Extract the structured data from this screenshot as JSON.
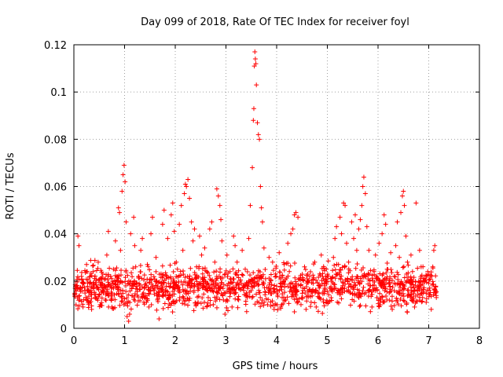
{
  "chart_data": {
    "type": "scatter",
    "title": "Day 099 of 2018, Rate Of TEC Index for receiver foyl",
    "xlabel": "GPS time / hours",
    "ylabel": "ROTI / TECUs",
    "xlim": [
      0,
      8
    ],
    "ylim": [
      0,
      0.12
    ],
    "xticks": [
      0,
      1,
      2,
      3,
      4,
      5,
      6,
      7,
      8
    ],
    "yticks": [
      0,
      0.02,
      0.04,
      0.06,
      0.08,
      0.1,
      0.12
    ],
    "xtick_labels": [
      "0",
      "1",
      "2",
      "3",
      "4",
      "5",
      "6",
      "7",
      "8"
    ],
    "ytick_labels": [
      "0",
      "0.02",
      "0.04",
      "0.06",
      "0.08",
      "0.1",
      "0.12"
    ],
    "grid": true,
    "marker": "+",
    "color": "#ff0000",
    "series": [
      {
        "name": "ROTI",
        "points": [
          [
            0.02,
            0.014
          ],
          [
            0.05,
            0.018
          ],
          [
            0.08,
            0.039
          ],
          [
            0.1,
            0.035
          ],
          [
            0.12,
            0.012
          ],
          [
            0.15,
            0.022
          ],
          [
            0.18,
            0.009
          ],
          [
            0.22,
            0.016
          ],
          [
            0.25,
            0.027
          ],
          [
            0.28,
            0.011
          ],
          [
            0.32,
            0.019
          ],
          [
            0.35,
            0.008
          ],
          [
            0.38,
            0.024
          ],
          [
            0.42,
            0.013
          ],
          [
            0.45,
            0.017
          ],
          [
            0.48,
            0.028
          ],
          [
            0.52,
            0.01
          ],
          [
            0.55,
            0.021
          ],
          [
            0.58,
            0.015
          ],
          [
            0.62,
            0.012
          ],
          [
            0.65,
            0.031
          ],
          [
            0.68,
            0.041
          ],
          [
            0.72,
            0.018
          ],
          [
            0.75,
            0.009
          ],
          [
            0.78,
            0.025
          ],
          [
            0.82,
            0.037
          ],
          [
            0.85,
            0.022
          ],
          [
            0.88,
            0.051
          ],
          [
            0.9,
            0.049
          ],
          [
            0.92,
            0.033
          ],
          [
            0.95,
            0.058
          ],
          [
            0.97,
            0.065
          ],
          [
            0.99,
            0.069
          ],
          [
            1.01,
            0.062
          ],
          [
            1.03,
            0.045
          ],
          [
            1.05,
            0.005
          ],
          [
            1.08,
            0.003
          ],
          [
            1.1,
            0.006
          ],
          [
            1.12,
            0.04
          ],
          [
            1.15,
            0.018
          ],
          [
            1.18,
            0.047
          ],
          [
            1.2,
            0.035
          ],
          [
            1.22,
            0.026
          ],
          [
            1.25,
            0.014
          ],
          [
            1.28,
            0.022
          ],
          [
            1.32,
            0.033
          ],
          [
            1.35,
            0.038
          ],
          [
            1.38,
            0.011
          ],
          [
            1.42,
            0.019
          ],
          [
            1.45,
            0.027
          ],
          [
            1.48,
            0.009
          ],
          [
            1.52,
            0.04
          ],
          [
            1.55,
            0.047
          ],
          [
            1.58,
            0.016
          ],
          [
            1.62,
            0.03
          ],
          [
            1.65,
            0.012
          ],
          [
            1.68,
            0.004
          ],
          [
            1.72,
            0.023
          ],
          [
            1.75,
            0.044
          ],
          [
            1.78,
            0.05
          ],
          [
            1.82,
            0.021
          ],
          [
            1.85,
            0.038
          ],
          [
            1.88,
            0.014
          ],
          [
            1.92,
            0.048
          ],
          [
            1.95,
            0.053
          ],
          [
            1.98,
            0.041
          ],
          [
            2.02,
            0.028
          ],
          [
            2.05,
            0.018
          ],
          [
            2.08,
            0.044
          ],
          [
            2.12,
            0.052
          ],
          [
            2.15,
            0.033
          ],
          [
            2.18,
            0.057
          ],
          [
            2.2,
            0.061
          ],
          [
            2.22,
            0.06
          ],
          [
            2.25,
            0.063
          ],
          [
            2.28,
            0.055
          ],
          [
            2.32,
            0.045
          ],
          [
            2.35,
            0.037
          ],
          [
            2.38,
            0.042
          ],
          [
            2.42,
            0.026
          ],
          [
            2.45,
            0.011
          ],
          [
            2.48,
            0.039
          ],
          [
            2.52,
            0.031
          ],
          [
            2.55,
            0.019
          ],
          [
            2.58,
            0.034
          ],
          [
            2.62,
            0.024
          ],
          [
            2.65,
            0.013
          ],
          [
            2.68,
            0.042
          ],
          [
            2.72,
            0.045
          ],
          [
            2.75,
            0.01
          ],
          [
            2.78,
            0.028
          ],
          [
            2.82,
            0.059
          ],
          [
            2.85,
            0.056
          ],
          [
            2.88,
            0.052
          ],
          [
            2.9,
            0.046
          ],
          [
            2.92,
            0.037
          ],
          [
            2.95,
            0.012
          ],
          [
            2.98,
            0.006
          ],
          [
            3.02,
            0.031
          ],
          [
            3.05,
            0.019
          ],
          [
            3.08,
            0.024
          ],
          [
            3.12,
            0.009
          ],
          [
            3.15,
            0.039
          ],
          [
            3.18,
            0.035
          ],
          [
            3.22,
            0.028
          ],
          [
            3.25,
            0.012
          ],
          [
            3.28,
            0.02
          ],
          [
            3.32,
            0.033
          ],
          [
            3.35,
            0.016
          ],
          [
            3.38,
            0.025
          ],
          [
            3.42,
            0.013
          ],
          [
            3.45,
            0.038
          ],
          [
            3.48,
            0.052
          ],
          [
            3.52,
            0.068
          ],
          [
            3.54,
            0.088
          ],
          [
            3.55,
            0.093
          ],
          [
            3.56,
            0.111
          ],
          [
            3.57,
            0.117
          ],
          [
            3.58,
            0.114
          ],
          [
            3.59,
            0.112
          ],
          [
            3.6,
            0.103
          ],
          [
            3.62,
            0.087
          ],
          [
            3.64,
            0.082
          ],
          [
            3.66,
            0.08
          ],
          [
            3.68,
            0.06
          ],
          [
            3.7,
            0.051
          ],
          [
            3.72,
            0.045
          ],
          [
            3.75,
            0.034
          ],
          [
            3.78,
            0.021
          ],
          [
            3.82,
            0.01
          ],
          [
            3.85,
            0.03
          ],
          [
            3.88,
            0.017
          ],
          [
            3.92,
            0.028
          ],
          [
            3.95,
            0.008
          ],
          [
            3.98,
            0.023
          ],
          [
            4.02,
            0.014
          ],
          [
            4.05,
            0.032
          ],
          [
            4.08,
            0.009
          ],
          [
            4.12,
            0.019
          ],
          [
            4.15,
            0.027
          ],
          [
            4.18,
            0.012
          ],
          [
            4.22,
            0.036
          ],
          [
            4.25,
            0.024
          ],
          [
            4.28,
            0.04
          ],
          [
            4.32,
            0.042
          ],
          [
            4.35,
            0.048
          ],
          [
            4.38,
            0.049
          ],
          [
            4.42,
            0.047
          ],
          [
            4.45,
            0.021
          ],
          [
            4.48,
            0.01
          ],
          [
            4.52,
            0.017
          ],
          [
            4.55,
            0.026
          ],
          [
            4.58,
            0.008
          ],
          [
            4.62,
            0.014
          ],
          [
            4.65,
            0.022
          ],
          [
            4.68,
            0.011
          ],
          [
            4.72,
            0.019
          ],
          [
            4.75,
            0.028
          ],
          [
            4.78,
            0.009
          ],
          [
            4.82,
            0.015
          ],
          [
            4.85,
            0.023
          ],
          [
            4.88,
            0.031
          ],
          [
            4.92,
            0.012
          ],
          [
            4.95,
            0.018
          ],
          [
            4.98,
            0.025
          ],
          [
            5.02,
            0.011
          ],
          [
            5.05,
            0.017
          ],
          [
            5.08,
            0.021
          ],
          [
            5.12,
            0.03
          ],
          [
            5.15,
            0.038
          ],
          [
            5.18,
            0.043
          ],
          [
            5.22,
            0.027
          ],
          [
            5.25,
            0.047
          ],
          [
            5.28,
            0.04
          ],
          [
            5.32,
            0.053
          ],
          [
            5.35,
            0.052
          ],
          [
            5.38,
            0.036
          ],
          [
            5.42,
            0.028
          ],
          [
            5.45,
            0.015
          ],
          [
            5.48,
            0.045
          ],
          [
            5.52,
            0.038
          ],
          [
            5.55,
            0.048
          ],
          [
            5.58,
            0.033
          ],
          [
            5.62,
            0.042
          ],
          [
            5.65,
            0.046
          ],
          [
            5.68,
            0.052
          ],
          [
            5.7,
            0.06
          ],
          [
            5.72,
            0.064
          ],
          [
            5.75,
            0.057
          ],
          [
            5.78,
            0.043
          ],
          [
            5.82,
            0.033
          ],
          [
            5.85,
            0.018
          ],
          [
            5.88,
            0.009
          ],
          [
            5.92,
            0.024
          ],
          [
            5.95,
            0.031
          ],
          [
            5.98,
            0.021
          ],
          [
            6.02,
            0.036
          ],
          [
            6.05,
            0.012
          ],
          [
            6.08,
            0.04
          ],
          [
            6.12,
            0.048
          ],
          [
            6.15,
            0.044
          ],
          [
            6.18,
            0.025
          ],
          [
            6.22,
            0.015
          ],
          [
            6.25,
            0.032
          ],
          [
            6.28,
            0.008
          ],
          [
            6.32,
            0.022
          ],
          [
            6.35,
            0.035
          ],
          [
            6.38,
            0.045
          ],
          [
            6.42,
            0.03
          ],
          [
            6.45,
            0.049
          ],
          [
            6.48,
            0.056
          ],
          [
            6.5,
            0.058
          ],
          [
            6.52,
            0.052
          ],
          [
            6.55,
            0.039
          ],
          [
            6.58,
            0.028
          ],
          [
            6.62,
            0.014
          ],
          [
            6.65,
            0.031
          ],
          [
            6.68,
            0.024
          ],
          [
            6.72,
            0.009
          ],
          [
            6.75,
            0.053
          ],
          [
            6.78,
            0.018
          ],
          [
            6.82,
            0.033
          ],
          [
            6.85,
            0.026
          ],
          [
            6.88,
            0.013
          ],
          [
            6.92,
            0.021
          ],
          [
            6.95,
            0.011
          ],
          [
            6.98,
            0.024
          ],
          [
            7.02,
            0.017
          ],
          [
            7.05,
            0.008
          ],
          [
            7.08,
            0.026
          ],
          [
            7.1,
            0.033
          ],
          [
            7.12,
            0.035
          ],
          [
            7.14,
            0.015
          ],
          [
            7.15,
            0.013
          ]
        ]
      }
    ],
    "dense_band": {
      "description": "dense cloud of measurements between 0.005 and 0.03 covering 0 to 7.15 hours",
      "x_range": [
        0,
        7.15
      ],
      "y_range": [
        0.005,
        0.03
      ],
      "count": 1400,
      "seed": 99
    }
  }
}
